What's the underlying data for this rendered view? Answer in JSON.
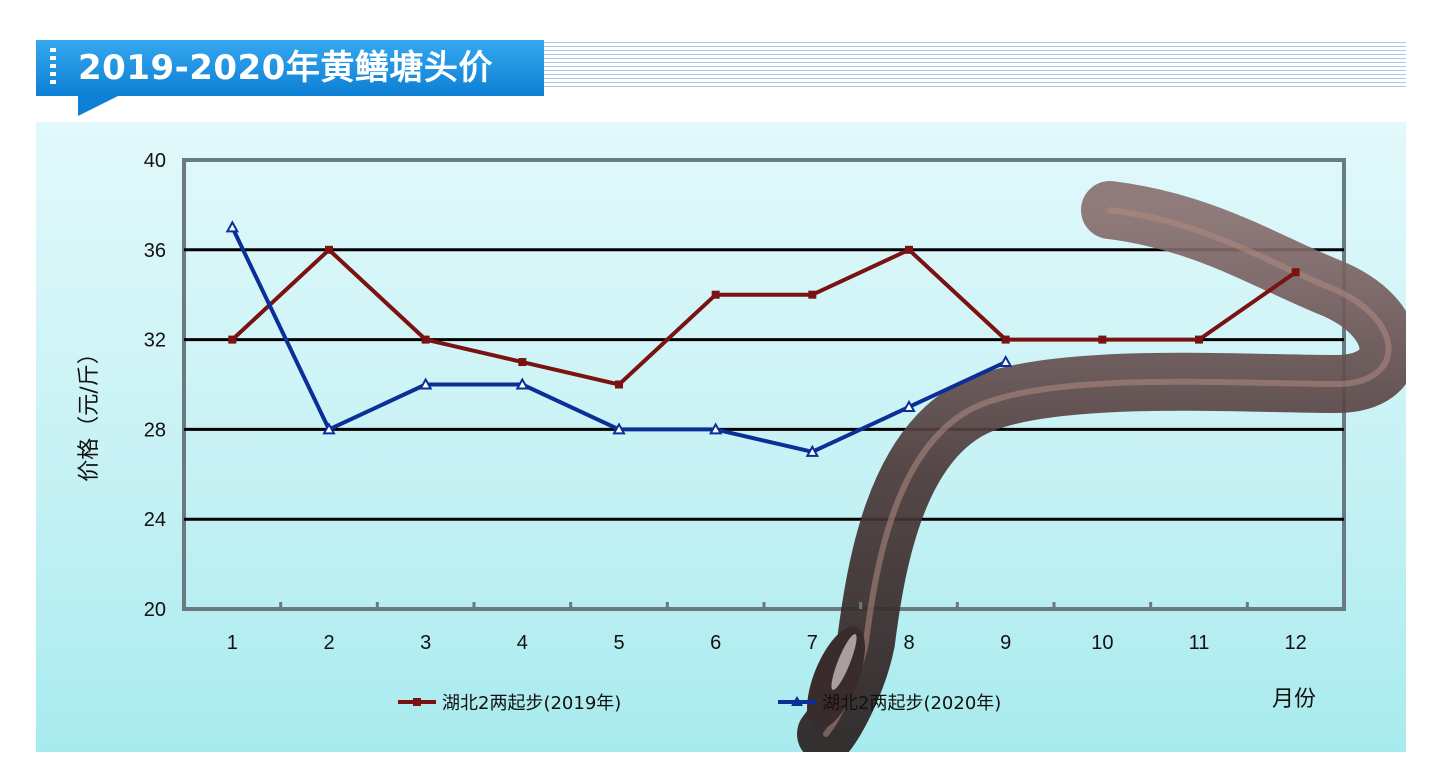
{
  "page": {
    "title": "2019-2020年黄鳝塘头价"
  },
  "chart_data": {
    "type": "line",
    "title": "2019-2020年黄鳝塘头价",
    "xlabel": "月份",
    "ylabel": "价格（元/斤）",
    "categories": [
      "1",
      "2",
      "3",
      "4",
      "5",
      "6",
      "7",
      "8",
      "9",
      "10",
      "11",
      "12"
    ],
    "ylim": [
      20,
      40
    ],
    "yticks": [
      "20",
      "24",
      "28",
      "32",
      "36",
      "40"
    ],
    "grid": "horizontal",
    "legend_position": "bottom",
    "series": [
      {
        "name": "湖北2两起步(2019年)",
        "color": "#7a1212",
        "marker": "square",
        "values": [
          32,
          36,
          32,
          31,
          30,
          34,
          34,
          36,
          32,
          32,
          32,
          35
        ]
      },
      {
        "name": "湖北2两起步(2020年)",
        "color": "#0b2f96",
        "marker": "triangle",
        "values": [
          37,
          28,
          30,
          30,
          28,
          28,
          27,
          29,
          31,
          null,
          null,
          null
        ]
      }
    ]
  },
  "colors": {
    "banner": "#1a8fe0",
    "panel": "#c4f1f4",
    "eel": "#4a3a3a"
  },
  "icons": {
    "decoration": "eel-illustration"
  }
}
